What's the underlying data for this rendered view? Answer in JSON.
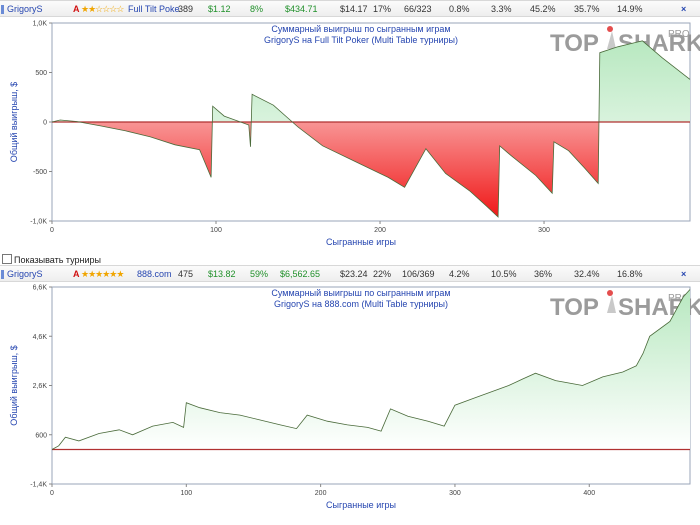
{
  "rows": [
    {
      "player": "GrigoryS",
      "rank_letter": "A",
      "stars": "★★☆☆☆☆",
      "site": "Full Tilt Poke",
      "games": "389",
      "avg_profit": "$1.12",
      "roi": "8%",
      "total_profit": "$434.71",
      "avg_buyin": "$14.17",
      "itm": "17%",
      "places": "66/323",
      "p1": "0.8%",
      "p2": "3.3%",
      "p3": "45.2%",
      "p4": "35.7%",
      "p5": "14.9%",
      "close": "×"
    },
    {
      "player": "GrigoryS",
      "rank_letter": "A",
      "stars": "★★★★★★",
      "site": "888.com",
      "games": "475",
      "avg_profit": "$13.82",
      "roi": "59%",
      "total_profit": "$6,562.65",
      "avg_buyin": "$23.24",
      "itm": "22%",
      "places": "106/369",
      "p1": "4.2%",
      "p2": "10.5%",
      "p3": "36%",
      "p4": "32.4%",
      "p5": "16.8%",
      "close": "×"
    }
  ],
  "show_tournaments_label": "Показывать турниры",
  "watermark": {
    "text_left": "TOP",
    "text_right": "SHARK",
    "pro": "PRO"
  },
  "chart_data": [
    {
      "type": "area",
      "title": "Суммарный выигрыш по сыгранным играм",
      "subtitle": "GrigoryS на Full Tilt Poker (Multi Table турниры)",
      "xlabel": "Сыгранные игры",
      "ylabel": "Общий выигрыш, $",
      "xlim": [
        0,
        389
      ],
      "ylim": [
        -1000,
        1000
      ],
      "x_ticks": [
        0,
        100,
        200,
        300
      ],
      "y_ticks": [
        -1000,
        -500,
        0,
        500,
        1000
      ],
      "y_tick_labels": [
        "-1,0K",
        "-500",
        "0",
        "500",
        "1,0K"
      ],
      "positive_color": "#1e9a3c",
      "negative_color": "#e02020",
      "zero_line_color": "#b03030",
      "points": [
        [
          0,
          0
        ],
        [
          5,
          20
        ],
        [
          15,
          5
        ],
        [
          30,
          -40
        ],
        [
          45,
          -90
        ],
        [
          60,
          -150
        ],
        [
          75,
          -230
        ],
        [
          90,
          -280
        ],
        [
          97,
          -560
        ],
        [
          98,
          160
        ],
        [
          105,
          60
        ],
        [
          120,
          -30
        ],
        [
          121,
          -250
        ],
        [
          122,
          280
        ],
        [
          135,
          170
        ],
        [
          150,
          -50
        ],
        [
          165,
          -240
        ],
        [
          185,
          -400
        ],
        [
          205,
          -560
        ],
        [
          215,
          -660
        ],
        [
          228,
          -270
        ],
        [
          240,
          -520
        ],
        [
          255,
          -700
        ],
        [
          265,
          -850
        ],
        [
          272,
          -960
        ],
        [
          273,
          -240
        ],
        [
          280,
          -340
        ],
        [
          295,
          -540
        ],
        [
          305,
          -720
        ],
        [
          306,
          -200
        ],
        [
          315,
          -290
        ],
        [
          325,
          -470
        ],
        [
          333,
          -620
        ],
        [
          334,
          700
        ],
        [
          345,
          760
        ],
        [
          360,
          820
        ],
        [
          372,
          650
        ],
        [
          389,
          430
        ]
      ]
    },
    {
      "type": "area",
      "title": "Суммарный выигрыш по сыгранным играм",
      "subtitle": "GrigoryS на 888.com (Multi Table турниры)",
      "xlabel": "Сыгранные игры",
      "ylabel": "Общий выигрыш, $",
      "xlim": [
        0,
        475
      ],
      "ylim": [
        -1400,
        6600
      ],
      "x_ticks": [
        0,
        100,
        200,
        300,
        400
      ],
      "y_ticks": [
        -1400,
        600,
        2600,
        4600,
        6600
      ],
      "y_tick_labels": [
        "-1,4K",
        "600",
        "2,6K",
        "4,6K",
        "6,6K"
      ],
      "positive_color": "#1e9a3c",
      "negative_color": "#e02020",
      "zero_line_color": "#b03030",
      "points": [
        [
          0,
          0
        ],
        [
          5,
          150
        ],
        [
          10,
          500
        ],
        [
          20,
          350
        ],
        [
          35,
          650
        ],
        [
          50,
          800
        ],
        [
          60,
          600
        ],
        [
          75,
          950
        ],
        [
          90,
          1100
        ],
        [
          98,
          900
        ],
        [
          100,
          1900
        ],
        [
          110,
          1700
        ],
        [
          125,
          1500
        ],
        [
          140,
          1400
        ],
        [
          155,
          1200
        ],
        [
          170,
          1000
        ],
        [
          182,
          850
        ],
        [
          190,
          1400
        ],
        [
          205,
          1150
        ],
        [
          220,
          1000
        ],
        [
          235,
          900
        ],
        [
          245,
          750
        ],
        [
          252,
          1650
        ],
        [
          265,
          1350
        ],
        [
          280,
          1150
        ],
        [
          292,
          950
        ],
        [
          300,
          1800
        ],
        [
          315,
          2100
        ],
        [
          325,
          2300
        ],
        [
          340,
          2600
        ],
        [
          350,
          2850
        ],
        [
          360,
          3100
        ],
        [
          375,
          2800
        ],
        [
          395,
          2600
        ],
        [
          410,
          2950
        ],
        [
          425,
          3150
        ],
        [
          435,
          3400
        ],
        [
          440,
          3900
        ],
        [
          445,
          4600
        ],
        [
          460,
          5200
        ],
        [
          470,
          6200
        ],
        [
          475,
          6500
        ]
      ]
    }
  ]
}
